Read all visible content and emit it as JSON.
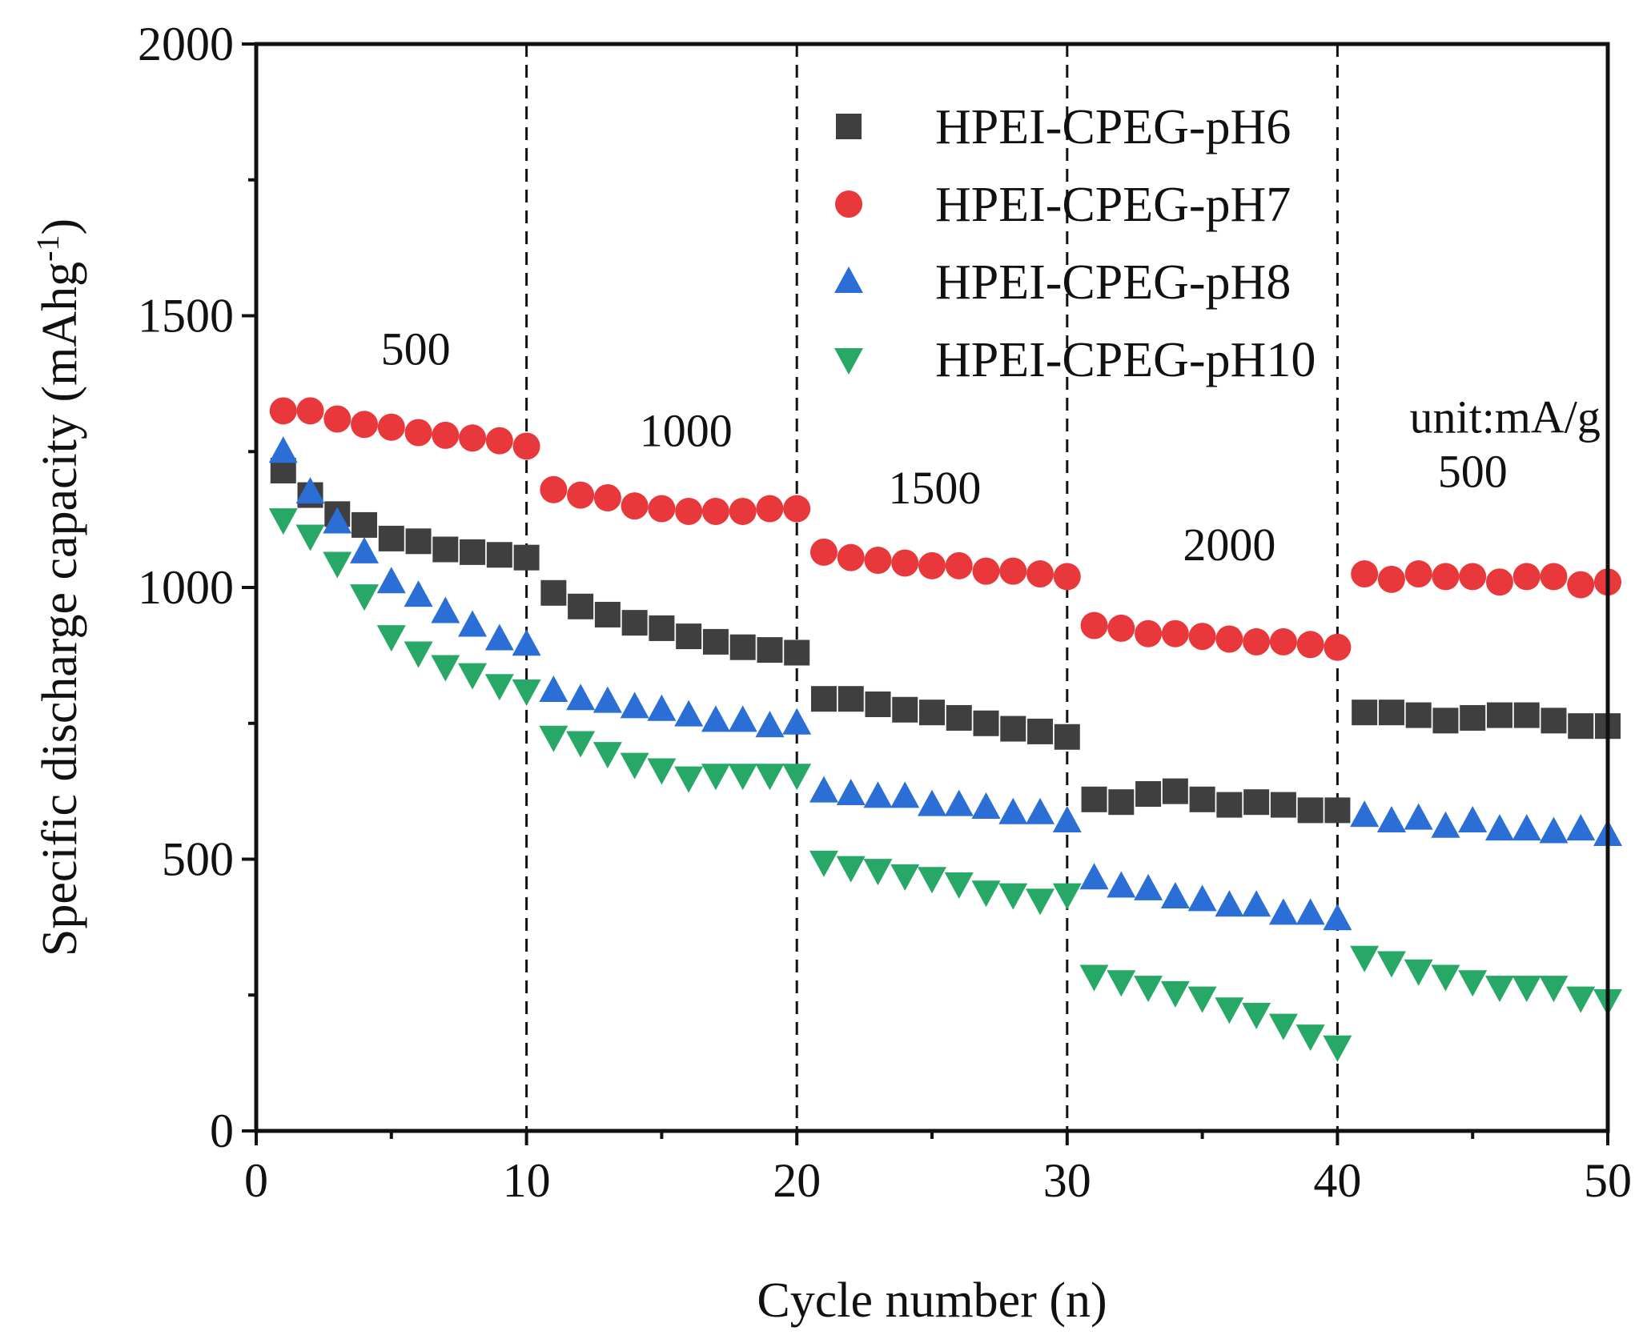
{
  "chart_data": {
    "type": "scatter",
    "xlabel": "Cycle number (n)",
    "ylabel": "Specific discharge capacity (mAhg",
    "ylabel_superscript": "-1",
    "ylabel_suffix": ")",
    "xlim": [
      0,
      50
    ],
    "ylim": [
      0,
      2000
    ],
    "x_ticks": [
      0,
      10,
      20,
      30,
      40,
      50
    ],
    "y_ticks": [
      0,
      500,
      1000,
      1500,
      2000
    ],
    "x_tick_labels": [
      "0",
      "10",
      "20",
      "30",
      "40",
      "50"
    ],
    "y_tick_labels": [
      "0",
      "500",
      "1000",
      "1500",
      "2000"
    ],
    "grid": false,
    "legend_position": "top-right",
    "divider_lines_x": [
      10,
      20,
      30,
      40
    ],
    "annotations": [
      {
        "text": "500",
        "x": 5.9,
        "y": 1410
      },
      {
        "text": "1000",
        "x": 15.9,
        "y": 1260
      },
      {
        "text": "1500",
        "x": 25.1,
        "y": 1155
      },
      {
        "text": "2000",
        "x": 36.0,
        "y": 1050
      },
      {
        "text": "unit:mA/g",
        "x": 46.2,
        "y": 1285
      },
      {
        "text": "500",
        "x": 45.0,
        "y": 1185
      }
    ],
    "x": [
      1,
      2,
      3,
      4,
      5,
      6,
      7,
      8,
      9,
      10,
      11,
      12,
      13,
      14,
      15,
      16,
      17,
      18,
      19,
      20,
      21,
      22,
      23,
      24,
      25,
      26,
      27,
      28,
      29,
      30,
      31,
      32,
      33,
      34,
      35,
      36,
      37,
      38,
      39,
      40,
      41,
      42,
      43,
      44,
      45,
      46,
      47,
      48,
      49,
      50
    ],
    "series": [
      {
        "name": "HPEI-CPEG-pH6",
        "color": "#3f3f3f",
        "marker": "square",
        "values": [
          1215,
          1170,
          1135,
          1115,
          1090,
          1085,
          1070,
          1065,
          1060,
          1055,
          990,
          965,
          950,
          935,
          925,
          910,
          900,
          890,
          885,
          880,
          795,
          795,
          785,
          775,
          770,
          760,
          750,
          740,
          735,
          725,
          610,
          605,
          620,
          625,
          610,
          600,
          605,
          600,
          590,
          590,
          770,
          770,
          765,
          755,
          760,
          765,
          765,
          755,
          745,
          745
        ]
      },
      {
        "name": "HPEI-CPEG-pH7",
        "color": "#e8383b",
        "marker": "circle",
        "values": [
          1325,
          1325,
          1310,
          1300,
          1295,
          1285,
          1280,
          1275,
          1270,
          1260,
          1180,
          1170,
          1165,
          1150,
          1145,
          1140,
          1140,
          1140,
          1145,
          1145,
          1065,
          1055,
          1050,
          1045,
          1040,
          1040,
          1030,
          1030,
          1025,
          1020,
          930,
          925,
          915,
          915,
          910,
          905,
          900,
          900,
          895,
          890,
          1025,
          1015,
          1025,
          1020,
          1020,
          1010,
          1020,
          1020,
          1005,
          1010
        ]
      },
      {
        "name": "HPEI-CPEG-pH8",
        "color": "#2a6ed6",
        "marker": "triangle-up",
        "values": [
          1250,
          1175,
          1120,
          1065,
          1010,
          985,
          955,
          930,
          905,
          895,
          810,
          795,
          790,
          780,
          775,
          765,
          755,
          755,
          745,
          750,
          625,
          620,
          615,
          615,
          600,
          600,
          595,
          585,
          585,
          570,
          465,
          450,
          445,
          430,
          425,
          415,
          415,
          400,
          400,
          390,
          580,
          570,
          575,
          560,
          570,
          555,
          555,
          550,
          555,
          545
        ]
      },
      {
        "name": "HPEI-CPEG-pH10",
        "color": "#27a866",
        "marker": "triangle-down",
        "values": [
          1125,
          1095,
          1045,
          985,
          910,
          880,
          855,
          840,
          820,
          810,
          725,
          715,
          695,
          675,
          665,
          650,
          655,
          655,
          655,
          655,
          495,
          485,
          480,
          470,
          465,
          455,
          440,
          435,
          425,
          435,
          285,
          275,
          265,
          255,
          245,
          225,
          215,
          195,
          175,
          155,
          320,
          310,
          295,
          285,
          275,
          265,
          265,
          265,
          245,
          240
        ]
      }
    ]
  }
}
